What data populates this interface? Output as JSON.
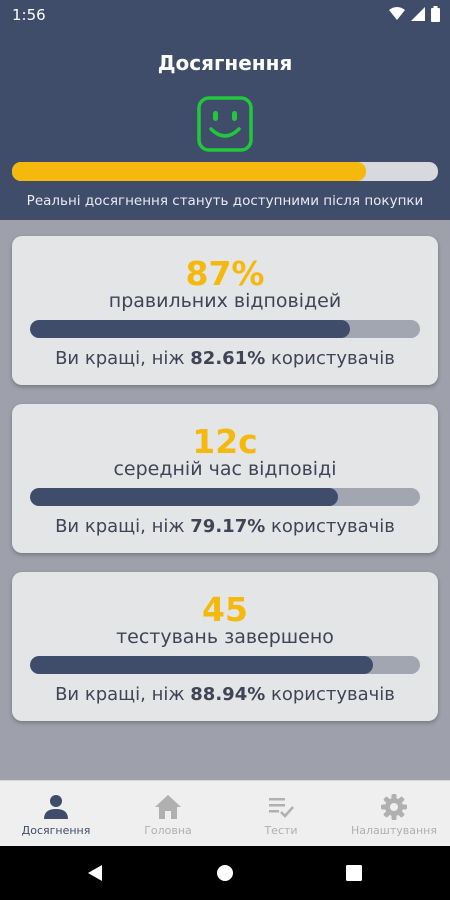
{
  "status_bar": {
    "time": "1:56"
  },
  "header": {
    "title": "Досягнення",
    "progress": 0.83,
    "note": "Реальні досягнення стануть доступними після покупки"
  },
  "cards": [
    {
      "value": "87%",
      "label": "правильних відповідей",
      "bar": 0.82,
      "compare_prefix": "Ви кращі, ніж ",
      "compare_value": "82.61%",
      "compare_suffix": " користувачів"
    },
    {
      "value": "12с",
      "label": "середній час відповіді",
      "bar": 0.79,
      "compare_prefix": "Ви кращі, ніж ",
      "compare_value": "79.17%",
      "compare_suffix": " користувачів"
    },
    {
      "value": "45",
      "label": "тестувань завершено",
      "bar": 0.88,
      "compare_prefix": "Ви кращі, ніж ",
      "compare_value": "88.94%",
      "compare_suffix": " користувачів"
    }
  ],
  "bottom_nav": [
    {
      "label": "Досягнення",
      "icon": "person-icon",
      "active": true
    },
    {
      "label": "Головна",
      "icon": "home-icon",
      "active": false
    },
    {
      "label": "Тести",
      "icon": "checklist-icon",
      "active": false
    },
    {
      "label": "Налаштування",
      "icon": "gear-icon",
      "active": false
    }
  ],
  "colors": {
    "header_bg": "#3f4d6a",
    "accent": "#f5b80c",
    "smiley": "#22c83c",
    "content_bg": "#9ea1ab",
    "card_bg": "#e4e5e7"
  }
}
